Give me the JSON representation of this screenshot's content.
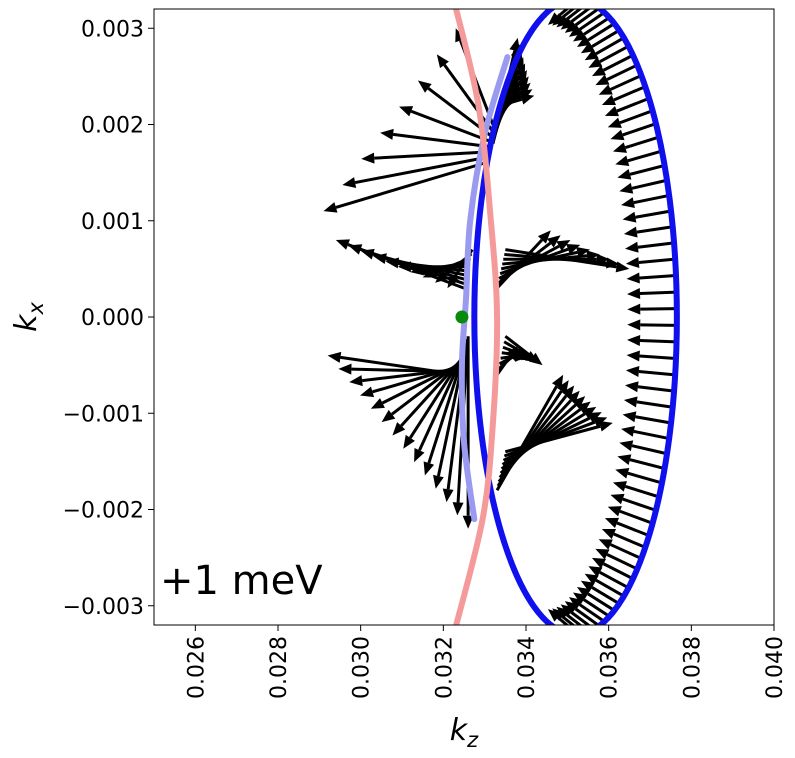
{
  "chart_data": {
    "type": "scatter",
    "title": "",
    "xlabel": "k",
    "xlabel_sub": "z",
    "ylabel": "k",
    "ylabel_sub": "x",
    "xlim": [
      0.025,
      0.04
    ],
    "ylim": [
      -0.0032,
      0.0032
    ],
    "xticks": [
      0.026,
      0.028,
      0.03,
      0.032,
      0.034,
      0.036,
      0.038,
      0.04
    ],
    "xtick_labels": [
      "0.026",
      "0.028",
      "0.030",
      "0.032",
      "0.034",
      "0.036",
      "0.038",
      "0.040"
    ],
    "yticks": [
      0.003,
      0.002,
      0.001,
      0.0,
      -0.001,
      -0.002,
      -0.003
    ],
    "ytick_labels": [
      "0.003",
      "0.002",
      "0.001",
      "0.000",
      "−0.001",
      "−0.002",
      "−0.003"
    ],
    "annotation": "+1 meV",
    "grid": false,
    "colors": {
      "blue": "#1010ee",
      "light_blue": "#9a9af0",
      "pink": "#f59a9a",
      "arrow": "#000000",
      "marker": "#0a8a0a"
    },
    "series": [
      {
        "kind": "ellipse",
        "color": "blue",
        "center": [
          0.0352,
          0.0
        ],
        "radii": [
          0.00245,
          0.0033
        ]
      },
      {
        "kind": "curve",
        "color": "light_blue",
        "points": [
          [
            0.03355,
            0.0027
          ],
          [
            0.033,
            0.0019
          ],
          [
            0.03265,
            0.001
          ],
          [
            0.03255,
            0.0002
          ],
          [
            0.03245,
            -0.0005
          ],
          [
            0.0325,
            -0.0013
          ],
          [
            0.03275,
            -0.0021
          ]
        ]
      },
      {
        "kind": "curve",
        "color": "pink",
        "points": [
          [
            0.03225,
            0.0033
          ],
          [
            0.03285,
            0.0022
          ],
          [
            0.03315,
            0.001
          ],
          [
            0.0333,
            0.0
          ],
          [
            0.0332,
            -0.0011
          ],
          [
            0.03295,
            -0.0021
          ],
          [
            0.03225,
            -0.0033
          ]
        ]
      },
      {
        "kind": "point",
        "color": "marker",
        "x": 0.03245,
        "y": 0.0
      }
    ],
    "arrow_fans": [
      {
        "origin": [
          0.0331,
          0.0018
        ],
        "count": 8,
        "tip_from": [
          0.0291,
          0.0011
        ],
        "tip_to": [
          0.0323,
          0.003
        ]
      },
      {
        "origin": [
          0.0326,
          0.0005
        ],
        "count": 10,
        "tip_from": [
          0.0294,
          0.0008
        ],
        "tip_to": [
          0.0321,
          0.0003
        ]
      },
      {
        "origin": [
          0.0325,
          -0.0004
        ],
        "count": 14,
        "tip_from": [
          0.0292,
          -0.0004
        ],
        "tip_to": [
          0.0326,
          -0.0022
        ]
      },
      {
        "origin": [
          0.0333,
          0.002
        ],
        "count": 10,
        "tip_from": [
          0.0338,
          0.0029
        ],
        "tip_to": [
          0.0342,
          0.0023
        ]
      },
      {
        "origin": [
          0.0334,
          0.0005
        ],
        "count": 9,
        "tip_from": [
          0.0346,
          0.0009
        ],
        "tip_to": [
          0.0365,
          0.0005
        ]
      },
      {
        "origin": [
          0.0334,
          -0.0004
        ],
        "count": 8,
        "tip_from": [
          0.0338,
          -0.0003
        ],
        "tip_to": [
          0.0344,
          -0.0005
        ]
      },
      {
        "origin": [
          0.0334,
          -0.0016
        ],
        "count": 10,
        "tip_from": [
          0.0349,
          -0.0006
        ],
        "tip_to": [
          0.0361,
          -0.0011
        ]
      }
    ],
    "ellipse_arrows": {
      "count": 60,
      "inward_kz": 0.0012
    }
  }
}
